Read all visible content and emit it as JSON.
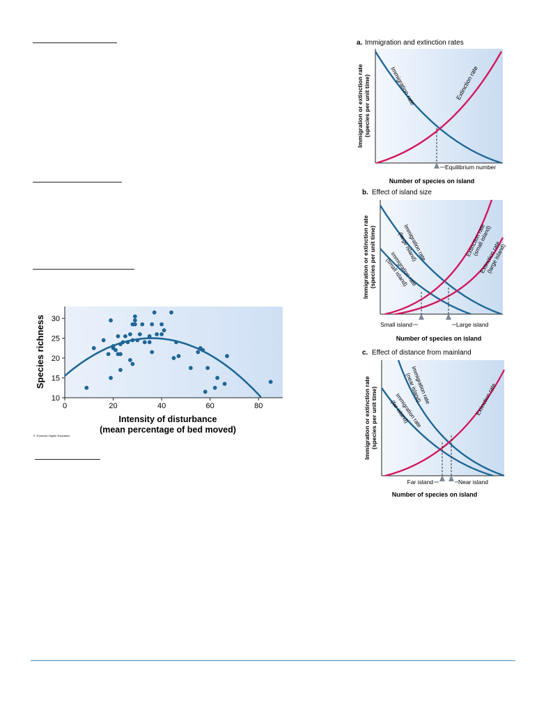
{
  "blank_headings": [
    "",
    "",
    "",
    ""
  ],
  "scatter": {
    "ylabel": "Species richness",
    "xlabel_line1": "Intensity of disturbance",
    "xlabel_line2": "(mean percentage of bed moved)",
    "x_ticks": [
      "0",
      "20",
      "40",
      "60",
      "80"
    ],
    "y_ticks": [
      "10",
      "15",
      "20",
      "25",
      "30"
    ],
    "credit": "© Thomson Higher Education",
    "colors": {
      "background": "#dbe7f7",
      "point": "#1f6696",
      "curve": "#1f6696"
    }
  },
  "chart_data": [
    {
      "type": "scatter",
      "xlabel": "Intensity of disturbance (mean percentage of bed moved)",
      "ylabel": "Species richness",
      "xlim": [
        0,
        90
      ],
      "ylim": [
        10,
        33
      ],
      "points": [
        [
          9,
          12.5
        ],
        [
          12,
          22.5
        ],
        [
          16,
          24.5
        ],
        [
          18,
          21
        ],
        [
          19,
          15
        ],
        [
          19,
          29.5
        ],
        [
          20,
          23
        ],
        [
          20,
          22.5
        ],
        [
          21,
          22
        ],
        [
          22,
          21
        ],
        [
          22,
          25.5
        ],
        [
          23,
          17
        ],
        [
          23,
          21
        ],
        [
          23,
          23.5
        ],
        [
          24,
          24
        ],
        [
          25,
          25.5
        ],
        [
          26,
          24
        ],
        [
          27,
          19.5
        ],
        [
          27,
          26
        ],
        [
          28,
          28.5
        ],
        [
          28,
          24.5
        ],
        [
          28,
          18.5
        ],
        [
          29,
          30.5
        ],
        [
          29,
          29.5
        ],
        [
          29,
          28.5
        ],
        [
          30,
          24.5
        ],
        [
          31,
          26
        ],
        [
          32,
          28.5
        ],
        [
          33,
          24
        ],
        [
          35,
          24
        ],
        [
          35,
          25.5
        ],
        [
          36,
          28.5
        ],
        [
          36,
          21.5
        ],
        [
          37,
          31.5
        ],
        [
          38,
          26
        ],
        [
          40,
          28.5
        ],
        [
          40,
          26
        ],
        [
          41,
          27
        ],
        [
          44,
          31.5
        ],
        [
          45,
          20
        ],
        [
          46,
          24
        ],
        [
          47,
          20.5
        ],
        [
          52,
          17.5
        ],
        [
          55,
          21.5
        ],
        [
          56,
          22.5
        ],
        [
          57,
          22
        ],
        [
          58,
          11.5
        ],
        [
          59,
          17.5
        ],
        [
          62,
          12.5
        ],
        [
          63,
          15
        ],
        [
          66,
          13.5
        ],
        [
          67,
          20.5
        ],
        [
          85,
          14
        ]
      ],
      "fit": {
        "type": "quadratic",
        "peak_x": 36,
        "peak_y": 25,
        "y_at_0": 15.5
      }
    },
    {
      "type": "line",
      "panel": "a",
      "title": "Immigration and extinction rates",
      "xlabel": "Number of species on island",
      "ylabel": "Immigration or extinction rate (species per unit time)",
      "series": [
        {
          "name": "Immigration rate",
          "color": "#1f6696"
        },
        {
          "name": "Extinction rate",
          "color": "#d2185e"
        }
      ],
      "annotations": [
        "Equilibrium number"
      ]
    },
    {
      "type": "line",
      "panel": "b",
      "title": "Effect of island size",
      "xlabel": "Number of species on island",
      "ylabel": "Immigration or extinction rate (species per unit time)",
      "series": [
        {
          "name": "Immigration rate (large island)",
          "color": "#1f6696"
        },
        {
          "name": "Immigration rate (small island)",
          "color": "#1f6696"
        },
        {
          "name": "Extinction rate (small island)",
          "color": "#d2185e"
        },
        {
          "name": "Extinction rate (large island)",
          "color": "#d2185e"
        }
      ],
      "annotations": [
        "Small island",
        "Large island"
      ]
    },
    {
      "type": "line",
      "panel": "c",
      "title": "Effect of distance from mainland",
      "xlabel": "Number of species on island",
      "ylabel": "Immigration or extinction rate (species per unit time)",
      "series": [
        {
          "name": "Immigration rate (near island)",
          "color": "#1f6696"
        },
        {
          "name": "Immigration rate (far island)",
          "color": "#1f6696"
        },
        {
          "name": "Extinction rate",
          "color": "#d2185e"
        }
      ],
      "annotations": [
        "Far island",
        "Near island"
      ]
    }
  ],
  "panels": {
    "ylabel_line1": "Immigration or extinction rate",
    "ylabel_line2": "(species per unit time)",
    "xlabel": "Number of species on island",
    "a": {
      "letter": "a.",
      "title": "Immigration and extinction rates",
      "immigration": "Immigration rate",
      "extinction": "Extinction rate",
      "marker": "Equilibrium number"
    },
    "b": {
      "letter": "b.",
      "title": "Effect of island size",
      "imm_large_1": "Immigration rate",
      "imm_large_2": "(large island)",
      "imm_small_1": "Immigration rate",
      "imm_small_2": "(small island)",
      "ext_small_1": "Extinction rate",
      "ext_small_2": "(small island)",
      "ext_large_1": "Extinction rate",
      "ext_large_2": "(large island)",
      "marker_small": "Small island",
      "marker_large": "Large island"
    },
    "c": {
      "letter": "c.",
      "title": "Effect of distance from mainland",
      "imm_near_1": "Immigration rate",
      "imm_near_2": "(near island)",
      "imm_far_1": "Immigration rate",
      "imm_far_2": "(far island)",
      "extinction": "Extinction rate",
      "marker_far": "Far island",
      "marker_near": "Near island"
    },
    "colors": {
      "blue": "#1f6696",
      "pink": "#d2185e",
      "bg_left": "#f4f8fd",
      "bg_right": "#c9dcf1"
    }
  }
}
